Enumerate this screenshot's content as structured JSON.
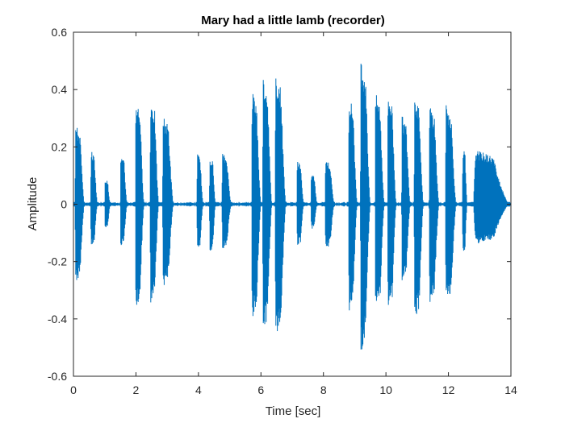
{
  "chart_data": {
    "type": "line",
    "title": "Mary had a little lamb (recorder)",
    "xlabel": "Time [sec]",
    "ylabel": "Amplitude",
    "xlim": [
      0,
      14
    ],
    "ylim": [
      -0.6,
      0.6
    ],
    "xticks": [
      0,
      2,
      4,
      6,
      8,
      10,
      12,
      14
    ],
    "yticks": [
      -0.6,
      -0.4,
      -0.2,
      0,
      0.2,
      0.4,
      0.6
    ],
    "grid": false,
    "series_color": "#0072BD",
    "baseline_amplitude": 0.008,
    "notes": [
      {
        "onset": 0.05,
        "duration": 0.3,
        "max": 0.28,
        "min": -0.28
      },
      {
        "onset": 0.55,
        "duration": 0.22,
        "max": 0.19,
        "min": -0.15
      },
      {
        "onset": 1.0,
        "duration": 0.18,
        "max": 0.09,
        "min": -0.09
      },
      {
        "onset": 1.5,
        "duration": 0.22,
        "max": 0.17,
        "min": -0.15
      },
      {
        "onset": 1.98,
        "duration": 0.28,
        "max": 0.37,
        "min": -0.37
      },
      {
        "onset": 2.45,
        "duration": 0.28,
        "max": 0.37,
        "min": -0.36
      },
      {
        "onset": 2.85,
        "duration": 0.35,
        "max": 0.31,
        "min": -0.29
      },
      {
        "onset": 3.95,
        "duration": 0.2,
        "max": 0.18,
        "min": -0.16
      },
      {
        "onset": 4.35,
        "duration": 0.2,
        "max": 0.17,
        "min": -0.17
      },
      {
        "onset": 4.75,
        "duration": 0.3,
        "max": 0.18,
        "min": -0.16
      },
      {
        "onset": 5.7,
        "duration": 0.3,
        "max": 0.4,
        "min": -0.4
      },
      {
        "onset": 6.05,
        "duration": 0.3,
        "max": 0.45,
        "min": -0.45
      },
      {
        "onset": 6.45,
        "duration": 0.35,
        "max": 0.46,
        "min": -0.47
      },
      {
        "onset": 7.15,
        "duration": 0.22,
        "max": 0.16,
        "min": -0.15
      },
      {
        "onset": 7.6,
        "duration": 0.2,
        "max": 0.11,
        "min": -0.09
      },
      {
        "onset": 8.05,
        "duration": 0.3,
        "max": 0.16,
        "min": -0.16
      },
      {
        "onset": 8.8,
        "duration": 0.28,
        "max": 0.38,
        "min": -0.38
      },
      {
        "onset": 9.18,
        "duration": 0.32,
        "max": 0.51,
        "min": -0.52
      },
      {
        "onset": 9.65,
        "duration": 0.3,
        "max": 0.39,
        "min": -0.38
      },
      {
        "onset": 10.05,
        "duration": 0.28,
        "max": 0.39,
        "min": -0.37
      },
      {
        "onset": 10.5,
        "duration": 0.28,
        "max": 0.31,
        "min": -0.28
      },
      {
        "onset": 10.9,
        "duration": 0.3,
        "max": 0.39,
        "min": -0.41
      },
      {
        "onset": 11.38,
        "duration": 0.32,
        "max": 0.35,
        "min": -0.35
      },
      {
        "onset": 11.9,
        "duration": 0.35,
        "max": 0.35,
        "min": -0.35
      },
      {
        "onset": 12.45,
        "duration": 0.15,
        "max": 0.2,
        "min": -0.18
      },
      {
        "onset": 12.8,
        "duration": 1.15,
        "max": 0.19,
        "min": -0.14
      }
    ]
  }
}
